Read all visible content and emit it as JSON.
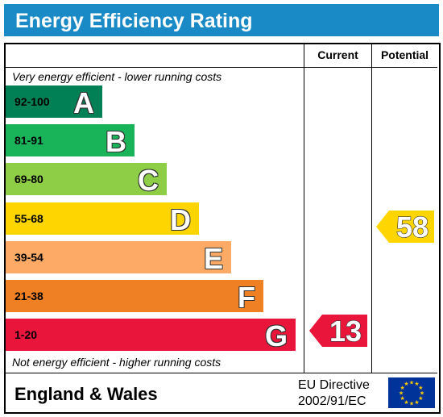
{
  "title": "Energy Efficiency Rating",
  "columns": {
    "current": "Current",
    "potential": "Potential"
  },
  "notes": {
    "top": "Very energy efficient - lower running costs",
    "bottom": "Not energy efficient - higher running costs"
  },
  "bands": [
    {
      "range": "92-100",
      "letter": "A",
      "color": "#008054",
      "range_color": "#000000"
    },
    {
      "range": "81-91",
      "letter": "B",
      "color": "#19b459",
      "range_color": "#000000"
    },
    {
      "range": "69-80",
      "letter": "C",
      "color": "#8dce46",
      "range_color": "#000000"
    },
    {
      "range": "55-68",
      "letter": "D",
      "color": "#ffd500",
      "range_color": "#000000"
    },
    {
      "range": "39-54",
      "letter": "E",
      "color": "#fcaa65",
      "range_color": "#000000"
    },
    {
      "range": "21-38",
      "letter": "F",
      "color": "#ef8023",
      "range_color": "#000000"
    },
    {
      "range": "1-20",
      "letter": "G",
      "color": "#e9153b",
      "range_color": "#000000"
    }
  ],
  "chart_data": {
    "type": "table",
    "title": "Energy Efficiency Rating",
    "categories": [
      "A",
      "B",
      "C",
      "D",
      "E",
      "F",
      "G"
    ],
    "ranges": [
      "92-100",
      "81-91",
      "69-80",
      "55-68",
      "39-54",
      "21-38",
      "1-20"
    ],
    "series": [
      {
        "name": "Current",
        "value": 13,
        "band": "G",
        "color": "#e9153b"
      },
      {
        "name": "Potential",
        "value": 58,
        "band": "D",
        "color": "#ffd500"
      }
    ]
  },
  "footer": {
    "region": "England & Wales",
    "directive_line1": "EU Directive",
    "directive_line2": "2002/91/EC",
    "flag_colors": {
      "field": "#003399",
      "stars": "#ffcc00"
    }
  },
  "colors": {
    "title_bar": "#1a8ac6"
  }
}
